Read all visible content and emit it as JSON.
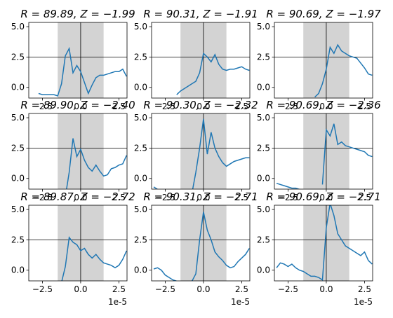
{
  "chart_data": [
    {
      "type": "line",
      "title": "R = 89.89, Z = −1.99",
      "color": "#1f77b4",
      "span": [
        -1.5,
        1.5
      ],
      "span_color": "#d3d3d3",
      "hline": 2.5,
      "vline": 0,
      "x": [
        -3.25,
        -3,
        -2.75,
        -2.5,
        -2.25,
        -2,
        -1.75,
        -1.5,
        -1.25,
        -1,
        -0.75,
        -0.5,
        -0.25,
        0,
        0.25,
        0.5,
        0.75,
        1,
        1.25,
        1.5,
        1.75,
        2,
        2.25,
        2.5,
        2.75,
        3
      ],
      "values": [
        null,
        null,
        -0.5,
        -0.6,
        -0.6,
        -0.6,
        -0.6,
        -0.7,
        0.3,
        2.6,
        3.2,
        1.2,
        1.8,
        1.3,
        0.4,
        -0.5,
        0.2,
        0.8,
        1.0,
        1.0,
        1.1,
        1.2,
        1.3,
        1.3,
        1.5,
        0.9
      ],
      "xlim": [
        -3.39,
        3.03
      ],
      "ylim": [
        -0.88,
        5.35
      ],
      "xticks": [
        {
          "value": -2.5,
          "label": "−2.5"
        },
        {
          "value": 0,
          "label": "0.0"
        },
        2.5
      ],
      "yticks": [
        {
          "value": 0,
          "label": "0.0"
        },
        2.5,
        {
          "value": 5,
          "label": "5.0"
        }
      ]
    },
    {
      "type": "line",
      "title": "R = 90.31, Z = −1.91",
      "color": "#1f77b4",
      "span": [
        -1.5,
        1.5
      ],
      "span_color": "#d3d3d3",
      "hline": 2.5,
      "vline": 0,
      "x": [
        -3.25,
        -3,
        -2.75,
        -2.5,
        -2.25,
        -2,
        -1.75,
        -1.5,
        -1.25,
        -1,
        -0.75,
        -0.5,
        -0.25,
        0,
        0.25,
        0.5,
        0.75,
        1,
        1.25,
        1.5,
        1.75,
        2,
        2.25,
        2.5,
        2.75,
        3
      ],
      "values": [
        null,
        null,
        null,
        null,
        null,
        null,
        -0.6,
        -0.3,
        -0.1,
        0.1,
        0.3,
        0.5,
        1.2,
        2.8,
        2.5,
        2.1,
        2.7,
        1.9,
        1.5,
        1.4,
        1.5,
        1.5,
        1.6,
        1.7,
        1.5,
        1.4
      ],
      "xlim": [
        -3.39,
        3.03
      ],
      "ylim": [
        -0.88,
        5.35
      ],
      "xticks": [
        {
          "value": -2.5,
          "label": "−2.5"
        },
        {
          "value": 0,
          "label": "0.0"
        },
        2.5
      ],
      "yticks": [
        {
          "value": 0,
          "label": "0.0"
        },
        2.5,
        {
          "value": 5,
          "label": "5.0"
        }
      ]
    },
    {
      "type": "line",
      "title": "R = 90.69, Z = −1.97",
      "color": "#1f77b4",
      "span": [
        -1.5,
        1.5
      ],
      "span_color": "#d3d3d3",
      "hline": 2.5,
      "vline": 0,
      "x": [
        -3.25,
        -3,
        -2.75,
        -2.5,
        -2.25,
        -2,
        -1.75,
        -1.5,
        -1.25,
        -1,
        -0.75,
        -0.5,
        -0.25,
        0,
        0.25,
        0.5,
        0.75,
        1,
        1.25,
        1.5,
        1.75,
        2,
        2.25,
        2.5,
        2.75,
        3
      ],
      "values": [
        null,
        null,
        null,
        null,
        null,
        null,
        null,
        null,
        null,
        null,
        -0.8,
        -0.5,
        0.3,
        1.5,
        3.3,
        2.8,
        3.5,
        3.0,
        2.8,
        2.6,
        2.5,
        2.4,
        2.0,
        1.6,
        1.1,
        1.0
      ],
      "xlim": [
        -3.39,
        3.03
      ],
      "ylim": [
        -0.88,
        5.35
      ],
      "xticks": [
        {
          "value": -2.5,
          "label": "−2.5"
        },
        {
          "value": 0,
          "label": "0.0"
        },
        2.5
      ],
      "yticks": [
        {
          "value": 0,
          "label": "0.0"
        },
        2.5,
        {
          "value": 5,
          "label": "5.0"
        }
      ]
    },
    {
      "type": "line",
      "title": "R = 89.90, Z = −2.40",
      "color": "#1f77b4",
      "span": [
        -1.5,
        1.5
      ],
      "span_color": "#d3d3d3",
      "hline": 2.5,
      "vline": 0,
      "x": [
        -3.25,
        -3,
        -2.75,
        -2.5,
        -2.25,
        -2,
        -1.75,
        -1.5,
        -1.25,
        -1,
        -0.75,
        -0.5,
        -0.25,
        0,
        0.25,
        0.5,
        0.75,
        1,
        1.25,
        1.5,
        1.75,
        2,
        2.25,
        2.5,
        2.75,
        3
      ],
      "values": [
        null,
        null,
        null,
        null,
        null,
        null,
        null,
        null,
        null,
        -1.5,
        0.5,
        3.3,
        1.8,
        2.4,
        1.5,
        0.9,
        0.6,
        1.1,
        0.6,
        0.2,
        0.3,
        0.8,
        0.9,
        1.1,
        1.2,
        1.9
      ],
      "xlim": [
        -3.39,
        3.03
      ],
      "ylim": [
        -0.88,
        5.35
      ],
      "xticks": [
        {
          "value": -2.5,
          "label": "−2.5"
        },
        {
          "value": 0,
          "label": "0.0"
        },
        2.5
      ],
      "yticks": [
        {
          "value": 0,
          "label": "0.0"
        },
        2.5,
        {
          "value": 5,
          "label": "5.0"
        }
      ]
    },
    {
      "type": "line",
      "title": "R = 90.30, Z = −2.32",
      "color": "#1f77b4",
      "span": [
        -1.5,
        1.5
      ],
      "span_color": "#d3d3d3",
      "hline": 2.5,
      "vline": 0,
      "x": [
        -3.25,
        -3,
        -2.75,
        -2.5,
        -2.25,
        -2,
        -1.75,
        -1.5,
        -1.25,
        -1,
        -0.75,
        -0.5,
        -0.25,
        0,
        0.25,
        0.5,
        0.75,
        1,
        1.25,
        1.5,
        1.75,
        2,
        2.25,
        2.5,
        2.75,
        3
      ],
      "values": [
        -0.7,
        -0.9,
        -1.2,
        null,
        null,
        null,
        null,
        null,
        null,
        null,
        -1.2,
        0.5,
        2.5,
        4.9,
        2.0,
        3.8,
        2.5,
        1.8,
        1.3,
        1.0,
        1.2,
        1.4,
        1.5,
        1.6,
        1.7,
        1.7
      ],
      "xlim": [
        -3.39,
        3.03
      ],
      "ylim": [
        -0.88,
        5.35
      ],
      "xticks": [
        {
          "value": -2.5,
          "label": "−2.5"
        },
        {
          "value": 0,
          "label": "0.0"
        },
        2.5
      ],
      "yticks": [
        {
          "value": 0,
          "label": "0.0"
        },
        2.5,
        {
          "value": 5,
          "label": "5.0"
        }
      ]
    },
    {
      "type": "line",
      "title": "R = 90.69, Z = −2.36",
      "color": "#1f77b4",
      "span": [
        -1.5,
        1.5
      ],
      "span_color": "#d3d3d3",
      "hline": 2.5,
      "vline": 0,
      "x": [
        -3.25,
        -3,
        -2.75,
        -2.5,
        -2.25,
        -2,
        -1.75,
        -1.5,
        -1.25,
        -1,
        -0.75,
        -0.5,
        -0.25,
        0,
        0.25,
        0.5,
        0.75,
        1,
        1.25,
        1.5,
        1.75,
        2,
        2.25,
        2.5,
        2.75,
        3
      ],
      "values": [
        -0.4,
        -0.5,
        -0.6,
        -0.7,
        -0.8,
        -0.8,
        -0.9,
        -1.0,
        null,
        null,
        null,
        null,
        -0.5,
        4.0,
        3.5,
        4.5,
        2.8,
        3.0,
        2.7,
        2.6,
        2.5,
        2.4,
        2.3,
        2.2,
        1.9,
        1.8
      ],
      "xlim": [
        -3.39,
        3.03
      ],
      "ylim": [
        -0.88,
        5.35
      ],
      "xticks": [
        {
          "value": -2.5,
          "label": "−2.5"
        },
        {
          "value": 0,
          "label": "0.0"
        },
        2.5
      ],
      "yticks": [
        {
          "value": 0,
          "label": "0.0"
        },
        2.5,
        {
          "value": 5,
          "label": "5.0"
        }
      ]
    },
    {
      "type": "line",
      "title": "R = 89.87, Z = −2.72",
      "color": "#1f77b4",
      "span": [
        -1.5,
        1.5
      ],
      "span_color": "#d3d3d3",
      "hline": 2.5,
      "vline": 0,
      "x": [
        -3.25,
        -3,
        -2.75,
        -2.5,
        -2.25,
        -2,
        -1.75,
        -1.5,
        -1.25,
        -1,
        -0.75,
        -0.5,
        -0.25,
        0,
        0.25,
        0.5,
        0.75,
        1,
        1.25,
        1.5,
        1.75,
        2,
        2.25,
        2.5,
        2.75,
        3
      ],
      "values": [
        null,
        null,
        null,
        null,
        null,
        null,
        null,
        null,
        -1.0,
        0.3,
        2.7,
        2.3,
        2.1,
        1.6,
        1.8,
        1.3,
        1.0,
        1.3,
        0.9,
        0.6,
        0.5,
        0.4,
        0.2,
        0.4,
        0.9,
        1.6
      ],
      "xlim": [
        -3.39,
        3.03
      ],
      "ylim": [
        -0.88,
        5.35
      ],
      "x_offset_label": "1e-5",
      "xticks": [
        {
          "value": -2.5,
          "label": "−2.5"
        },
        {
          "value": 0,
          "label": "0.0"
        },
        2.5
      ],
      "yticks": [
        {
          "value": 0,
          "label": "0.0"
        },
        2.5,
        {
          "value": 5,
          "label": "5.0"
        }
      ]
    },
    {
      "type": "line",
      "title": "R = 90.31, Z = −2.71",
      "color": "#1f77b4",
      "span": [
        -1.5,
        1.5
      ],
      "span_color": "#d3d3d3",
      "hline": 2.5,
      "vline": 0,
      "x": [
        -3.25,
        -3,
        -2.75,
        -2.5,
        -2.25,
        -2,
        -1.75,
        -1.5,
        -1.25,
        -1,
        -0.75,
        -0.5,
        -0.25,
        0,
        0.25,
        0.5,
        0.75,
        1,
        1.25,
        1.5,
        1.75,
        2,
        2.25,
        2.5,
        2.75,
        3
      ],
      "values": [
        0.1,
        0.2,
        0.0,
        -0.4,
        -0.6,
        -0.8,
        -0.9,
        null,
        null,
        null,
        -0.9,
        -0.3,
        2.5,
        4.8,
        3.3,
        2.5,
        1.5,
        1.1,
        0.8,
        0.4,
        0.2,
        0.3,
        0.7,
        1.0,
        1.3,
        1.8
      ],
      "xlim": [
        -3.39,
        3.03
      ],
      "ylim": [
        -0.88,
        5.35
      ],
      "x_offset_label": "1e-5",
      "xticks": [
        {
          "value": -2.5,
          "label": "−2.5"
        },
        {
          "value": 0,
          "label": "0.0"
        },
        2.5
      ],
      "yticks": [
        {
          "value": 0,
          "label": "0.0"
        },
        2.5,
        {
          "value": 5,
          "label": "5.0"
        }
      ]
    },
    {
      "type": "line",
      "title": "R = 90.69, Z = −2.71",
      "color": "#1f77b4",
      "span": [
        -1.5,
        1.5
      ],
      "span_color": "#d3d3d3",
      "hline": 2.5,
      "vline": 0,
      "x": [
        -3.25,
        -3,
        -2.75,
        -2.5,
        -2.25,
        -2,
        -1.75,
        -1.5,
        -1.25,
        -1,
        -0.75,
        -0.5,
        -0.25,
        0,
        0.25,
        0.5,
        0.75,
        1,
        1.25,
        1.5,
        1.75,
        2,
        2.25,
        2.5,
        2.75,
        3
      ],
      "values": [
        0.2,
        0.6,
        0.5,
        0.3,
        0.5,
        0.2,
        0.0,
        -0.1,
        -0.3,
        -0.5,
        -0.5,
        -0.6,
        -0.8,
        3.5,
        5.5,
        4.5,
        3.0,
        2.5,
        2.0,
        1.8,
        1.6,
        1.4,
        1.2,
        1.5,
        0.8,
        0.5
      ],
      "xlim": [
        -3.39,
        3.03
      ],
      "ylim": [
        -0.88,
        5.35
      ],
      "x_offset_label": "1e-5",
      "xticks": [
        {
          "value": -2.5,
          "label": "−2.5"
        },
        {
          "value": 0,
          "label": "0.0"
        },
        2.5
      ],
      "yticks": [
        {
          "value": 0,
          "label": "0.0"
        },
        2.5,
        {
          "value": 5,
          "label": "5.0"
        }
      ]
    }
  ]
}
